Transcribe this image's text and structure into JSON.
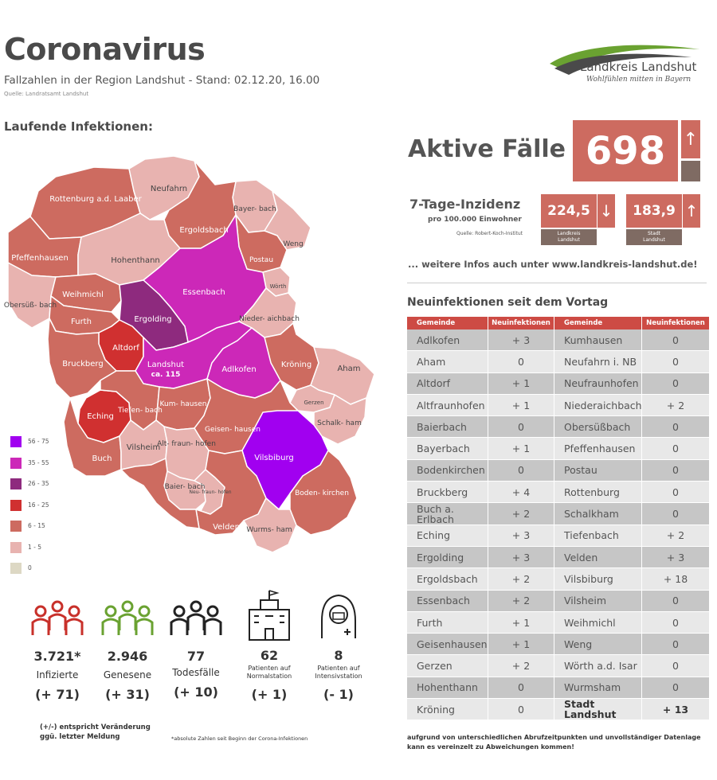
{
  "header": {
    "title": "Coronavirus",
    "subtitle": "Fallzahlen in der Region Landshut - Stand: 02.12.20, 16.00",
    "source": "Quelle: Landratsamt Landshut"
  },
  "logo": {
    "name": "Landkreis Landshut",
    "slogan": "Wohlfühlen mitten in Bayern"
  },
  "map": {
    "heading": "Laufende Infektionen:",
    "regions": {
      "rottenburg": "Rottenburg a.d. Laaber",
      "neufahrn": "Neufahrn",
      "bayerbach": "Bayer- bach",
      "ergoldsbach": "Ergoldsbach",
      "weng": "Weng",
      "pfeffenhausen": "Pfeffenhausen",
      "hohenthann": "Hohenthann",
      "postau": "Postau",
      "woerth": "Wörth",
      "essenbach": "Essenbach",
      "obersuessbach": "Obersüß- bach",
      "weihmichl": "Weihmichl",
      "ergolding": "Ergolding",
      "niederaichbach": "Nieder- aichbach",
      "furth": "Furth",
      "altdorf": "Altdorf",
      "kroening": "Kröning",
      "aham": "Aham",
      "bruckberg": "Bruckberg",
      "landshut": "Landshut",
      "landshut_ca": "ca. 115",
      "adlkofen": "Adlkofen",
      "gerzen": "Gerzen",
      "schalkham": "Schalk- ham",
      "eching": "Eching",
      "tiefenbach": "Tiefen- bach",
      "kumhausen": "Kum- hausen",
      "geisenhausen": "Geisen- hausen",
      "vilsbiburg": "Vilsbiburg",
      "buch": "Buch",
      "vilsheim": "Vilsheim",
      "altfraunhofen": "Alt- fraun- hofen",
      "baierbach": "Baier- bach",
      "neufraunhofen": "Neu- fraun- hofen",
      "bodenkirchen": "Boden- kirchen",
      "velden": "Velden",
      "wurmsham": "Wurms- ham"
    },
    "legend": [
      {
        "label": "56 - 75",
        "color": "#a100f0"
      },
      {
        "label": "35 - 55",
        "color": "#cc28b8"
      },
      {
        "label": "26 - 35",
        "color": "#8e2a7e"
      },
      {
        "label": "16 - 25",
        "color": "#d03030"
      },
      {
        "label": "6 - 15",
        "color": "#cd6b60"
      },
      {
        "label": "1 - 5",
        "color": "#e8b3b0"
      },
      {
        "label": "0",
        "color": "#ddd8c4"
      }
    ]
  },
  "active": {
    "label": "Aktive Fälle",
    "value": "698",
    "arrow": "↑"
  },
  "incidence": {
    "label": "7-Tage-Inzidenz",
    "sub": "pro 100.000 Einwohner",
    "source": "Quelle: Robert-Koch-Institut",
    "landkreis": {
      "value": "224,5",
      "arrow": "↓",
      "tag1": "Landkreis",
      "tag2": "Landshut"
    },
    "stadt": {
      "value": "183,9",
      "arrow": "↑",
      "tag1": "Stadt",
      "tag2": "Landshut"
    }
  },
  "more_info": "... weitere Infos auch unter www.landkreis-landshut.de!",
  "table": {
    "heading": "Neuinfektionen seit dem Vortag",
    "headers": [
      "Gemeinde",
      "Neuinfektionen",
      "Gemeinde",
      "Neuinfektionen"
    ],
    "rows": [
      [
        "Adlkofen",
        "+ 3",
        "Kumhausen",
        "0"
      ],
      [
        "Aham",
        "0",
        "Neufahrn i. NB",
        "0"
      ],
      [
        "Altdorf",
        "+ 1",
        "Neufraunhofen",
        "0"
      ],
      [
        "Altfraunhofen",
        "+ 1",
        "Niederaichbach",
        "+ 2"
      ],
      [
        "Baierbach",
        "0",
        "Obersüßbach",
        "0"
      ],
      [
        "Bayerbach",
        "+ 1",
        "Pfeffenhausen",
        "0"
      ],
      [
        "Bodenkirchen",
        "0",
        "Postau",
        "0"
      ],
      [
        "Bruckberg",
        "+ 4",
        "Rottenburg",
        "0"
      ],
      [
        "Buch a. Erlbach",
        "+ 2",
        "Schalkham",
        "0"
      ],
      [
        "Eching",
        "+ 3",
        "Tiefenbach",
        "+ 2"
      ],
      [
        "Ergolding",
        "+ 3",
        "Velden",
        "+ 3"
      ],
      [
        "Ergoldsbach",
        "+ 2",
        "Vilsbiburg",
        "+ 18"
      ],
      [
        "Essenbach",
        "+ 2",
        "Vilsheim",
        "0"
      ],
      [
        "Furth",
        "+ 1",
        "Weihmichl",
        "0"
      ],
      [
        "Geisenhausen",
        "+ 1",
        "Weng",
        "0"
      ],
      [
        "Gerzen",
        "+ 2",
        "Wörth a.d. Isar",
        "0"
      ],
      [
        "Hohenthann",
        "0",
        "Wurmsham",
        "0"
      ],
      [
        "Kröning",
        "0",
        "Stadt Landshut",
        "+ 13"
      ]
    ]
  },
  "stats": [
    {
      "value": "3.721*",
      "label": "Infizierte",
      "change": "(+ 71)",
      "color": "#c8302a"
    },
    {
      "value": "2.946",
      "label": "Genesene",
      "change": "(+ 31)",
      "color": "#6aa231"
    },
    {
      "value": "77",
      "label": "Todesfälle",
      "change": "(+ 10)",
      "color": "#222222"
    },
    {
      "value": "62",
      "label": "Patienten auf Normalstation",
      "change": "(+ 1)",
      "color": "#222222"
    },
    {
      "value": "8",
      "label": "Patienten auf Intensivstation",
      "change": "(- 1)",
      "color": "#222222"
    }
  ],
  "footnotes": {
    "left_1": "(+/-) entspricht Veränderung",
    "left_2": "ggü. letzter Meldung",
    "mid": "*absolute Zahlen seit Beginn der Corona-Infektionen",
    "right_1": "aufgrund von unterschiedlichen Abrufzeitpunkten und unvollständiger Datenlage",
    "right_2": "kann es vereinzelt zu Abweichungen kommen!"
  }
}
